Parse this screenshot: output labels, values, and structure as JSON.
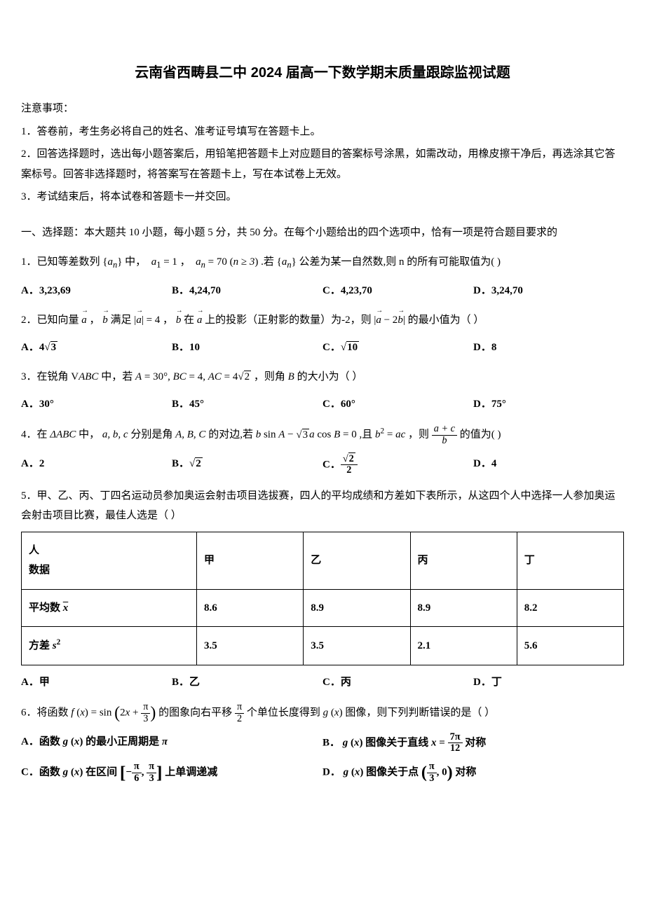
{
  "title": "云南省西畴县二中 2024 届高一下数学期末质量跟踪监视试题",
  "notice_header": "注意事项：",
  "notices": [
    "1．答卷前，考生务必将自己的姓名、准考证号填写在答题卡上。",
    "2．回答选择题时，选出每小题答案后，用铅笔把答题卡上对应题目的答案标号涂黑，如需改动，用橡皮擦干净后，再选涂其它答案标号。回答非选择题时，将答案写在答题卡上，写在本试卷上无效。",
    "3．考试结束后，将本试卷和答题卡一并交回。"
  ],
  "section1_intro": "一、选择题：本大题共 10 小题，每小题 5 分，共 50 分。在每个小题给出的四个选项中，恰有一项是符合题目要求的",
  "q1": {
    "stem_pre": "1．已知等差数列",
    "stem_mid1": "中，",
    "stem_mid2": "，",
    "stem_mid3": ".若",
    "stem_mid4": "公差为某一自然数,则 n 的所有可能取值为( )",
    "a1": "1",
    "an": "70",
    "cond": "n ≥ 3",
    "optA": "A．3,23,69",
    "optB": "B．4,24,70",
    "optC": "C．4,23,70",
    "optD": "D．3,24,70"
  },
  "q2": {
    "stem_pre": "2．已知向量",
    "stem_mid1": "，",
    "stem_mid2": "满足",
    "stem_mid3": "，",
    "stem_mid4": "在",
    "stem_mid5": "上的投影（正射影的数量）为-2，则",
    "stem_mid6": "的最小值为（    ）",
    "abs_a_val": "4",
    "optA_pre": "A．",
    "optA_val": "3",
    "optA_coef": "4",
    "optB": "B．10",
    "optC_pre": "C．",
    "optC_val": "10",
    "optD": "D．8"
  },
  "q3": {
    "stem_pre": "3．在锐角",
    "stem_mid1": "中，若",
    "stem_mid2": "，则角",
    "stem_mid3": "的大小为（    ）",
    "A": "A = 30°",
    "BC": "BC = 4",
    "AC_coef": "4",
    "AC_val": "2",
    "angleB": "B",
    "optA": "A．30°",
    "optB": "B．45°",
    "optC": "C．60°",
    "optD": "D．75°"
  },
  "q4": {
    "stem_pre": "4．在",
    "stem_mid1": "中，",
    "stem_mid2": "分别是角",
    "stem_mid3": "的对边,若",
    "stem_mid4": ",且",
    "stem_mid5": "，则",
    "stem_mid6": "的值为(   )",
    "tri": "ΔABC",
    "sides": "a, b, c",
    "angles": "A, B, C",
    "eq": "b sin A − √3 a cos B = 0",
    "eq_sqrt": "3",
    "cond": "b² = ac",
    "frac_num": "a + c",
    "frac_den": "b",
    "optA": "A．2",
    "optB_pre": "B．",
    "optB_val": "2",
    "optC_pre": "C．",
    "optC_num_val": "2",
    "optC_den": "2",
    "optD": "D．4"
  },
  "q5": {
    "stem": "5．甲、乙、丙、丁四名运动员参加奥运会射击项目选拔赛，四人的平均成绩和方差如下表所示，从这四个人中选择一人参加奥运会射击项目比赛，最佳人选是（    ）",
    "table": {
      "header_row": [
        "人\n数据",
        "甲",
        "乙",
        "丙",
        "丁"
      ],
      "row_mean_label": "平均数",
      "row_mean_var": "x̄",
      "row_mean": [
        "8.6",
        "8.9",
        "8.9",
        "8.2"
      ],
      "row_var_label": "方差",
      "row_var_var": "s²",
      "row_var": [
        "3.5",
        "3.5",
        "2.1",
        "5.6"
      ]
    },
    "optA": "A．甲",
    "optB": "B．乙",
    "optC": "C．丙",
    "optD": "D．丁"
  },
  "q6": {
    "stem_pre": "6．将函数",
    "stem_mid1": "的图象向右平移",
    "stem_mid2": "个单位长度得到",
    "stem_mid3": "图像，则下列判断错误的是（    ）",
    "f_def_pre": "f (x) = sin",
    "f_arg_inner": "2x + ",
    "f_arg_frac_num": "π",
    "f_arg_frac_den": "3",
    "shift_num": "π",
    "shift_den": "2",
    "gx": "g (x)",
    "optA_pre": "A．函数",
    "optA_mid": "的最小正周期是",
    "optA_val": "π",
    "optB_pre": "B．",
    "optB_mid": "图像关于直线",
    "optB_x_pre": "x = ",
    "optB_frac_num": "7π",
    "optB_frac_den": "12",
    "optB_suf": "对称",
    "optC_pre": "C．函数",
    "optC_mid": "在区间",
    "optC_low_num": "π",
    "optC_low_den": "6",
    "optC_high_num": "π",
    "optC_high_den": "3",
    "optC_suf": "上单调递减",
    "optD_pre": "D．",
    "optD_mid": "图像关于点",
    "optD_x_num": "π",
    "optD_x_den": "3",
    "optD_y": "0",
    "optD_suf": "对称"
  }
}
